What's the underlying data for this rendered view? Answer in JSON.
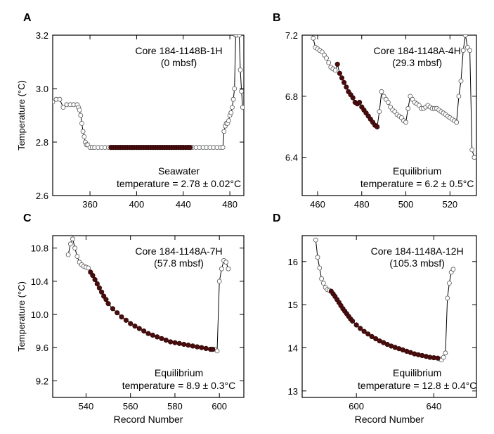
{
  "chart_data": [
    {
      "type": "scatter",
      "panel_label": "A",
      "title": "Core 184-1148B-1H",
      "subtitle": "(0 mbsf)",
      "annotation_line1": "Seawater",
      "annotation_line2": "temperature = 2.78 ± 0.02°C",
      "xlabel": "",
      "ylabel": "Temperature (°C)",
      "xlim": [
        328,
        492
      ],
      "ylim": [
        2.6,
        3.2
      ],
      "xticks": [
        360,
        400,
        440,
        480
      ],
      "xtick_labels": [
        "360",
        "400",
        "440",
        "480"
      ],
      "yticks": [
        2.6,
        2.8,
        3.0,
        3.2
      ],
      "ytick_labels": [
        "2.6",
        "2.8",
        "3.0",
        "3.2"
      ],
      "series": [
        {
          "style": "open",
          "x": [
            328,
            331,
            334,
            337,
            340,
            343,
            346,
            349,
            350,
            351,
            352,
            353,
            354,
            355,
            356,
            357,
            358,
            360,
            362,
            364,
            367,
            370,
            373,
            376,
            379,
            382,
            385,
            388,
            391,
            394,
            397,
            400,
            403,
            406,
            409,
            412,
            415,
            418,
            421,
            424,
            427,
            430,
            433,
            436,
            439,
            442,
            445,
            448,
            451,
            454,
            457,
            460,
            463,
            466,
            469,
            472,
            474,
            475,
            476,
            477,
            478,
            479,
            480,
            481,
            482,
            483,
            484,
            485,
            486,
            488,
            489,
            490,
            491
          ],
          "y": [
            2.95,
            2.96,
            2.96,
            2.93,
            2.94,
            2.94,
            2.94,
            2.94,
            2.93,
            2.92,
            2.9,
            2.87,
            2.84,
            2.82,
            2.8,
            2.79,
            2.79,
            2.78,
            2.78,
            2.78,
            2.78,
            2.78,
            2.78,
            2.78,
            2.78,
            2.78,
            2.78,
            2.78,
            2.78,
            2.78,
            2.78,
            2.78,
            2.78,
            2.78,
            2.78,
            2.78,
            2.78,
            2.78,
            2.78,
            2.78,
            2.78,
            2.78,
            2.78,
            2.78,
            2.78,
            2.78,
            2.78,
            2.78,
            2.78,
            2.78,
            2.78,
            2.78,
            2.78,
            2.78,
            2.78,
            2.78,
            2.78,
            2.84,
            2.86,
            2.87,
            2.87,
            2.88,
            2.9,
            2.91,
            2.93,
            2.96,
            3.0,
            3.2,
            3.2,
            3.2,
            3.07,
            2.99,
            2.93
          ]
        },
        {
          "style": "filled",
          "x": [
            378,
            380,
            382,
            384,
            386,
            388,
            390,
            392,
            394,
            396,
            398,
            400,
            402,
            404,
            406,
            408,
            410,
            412,
            414,
            416,
            418,
            420,
            422,
            424,
            426,
            428,
            430,
            432,
            434,
            436,
            438,
            440,
            442,
            444,
            446
          ],
          "y": [
            2.78,
            2.78,
            2.78,
            2.78,
            2.78,
            2.78,
            2.78,
            2.78,
            2.78,
            2.78,
            2.78,
            2.78,
            2.78,
            2.78,
            2.78,
            2.78,
            2.78,
            2.78,
            2.78,
            2.78,
            2.78,
            2.78,
            2.78,
            2.78,
            2.78,
            2.78,
            2.78,
            2.78,
            2.78,
            2.78,
            2.78,
            2.78,
            2.78,
            2.78,
            2.78
          ]
        }
      ]
    },
    {
      "type": "scatter",
      "panel_label": "B",
      "title": "Core 184-1148A-4H",
      "subtitle": "(29.3 mbsf)",
      "annotation_line1": "Equilibrium",
      "annotation_line2": "temperature = 6.2 ± 0.5°C",
      "xlabel": "",
      "ylabel": "",
      "xlim": [
        453,
        532
      ],
      "ylim": [
        6.15,
        7.2
      ],
      "xticks": [
        460,
        480,
        500,
        520
      ],
      "xtick_labels": [
        "460",
        "480",
        "500",
        "520"
      ],
      "yticks": [
        6.4,
        6.8,
        7.2
      ],
      "ytick_labels": [
        "6.4",
        "6.8",
        "7.2"
      ],
      "series": [
        {
          "style": "open",
          "x": [
            457,
            458,
            459,
            460,
            461,
            462,
            463,
            464,
            465,
            466,
            467,
            468,
            488,
            489,
            490,
            491,
            492,
            493,
            494,
            495,
            496,
            497,
            498,
            499,
            500,
            501,
            502,
            503,
            504,
            505,
            506,
            507,
            508,
            509,
            510,
            511,
            512,
            513,
            514,
            515,
            516,
            517,
            518,
            519,
            520,
            521,
            522,
            523,
            524,
            525,
            526,
            527,
            528,
            529,
            530,
            531
          ],
          "y": [
            7.25,
            7.18,
            7.12,
            7.11,
            7.1,
            7.09,
            7.07,
            7.05,
            7.02,
            6.99,
            6.98,
            6.97,
            6.7,
            6.83,
            6.8,
            6.78,
            6.76,
            6.73,
            6.71,
            6.7,
            6.68,
            6.67,
            6.66,
            6.64,
            6.63,
            6.72,
            6.8,
            6.78,
            6.76,
            6.75,
            6.74,
            6.72,
            6.72,
            6.73,
            6.74,
            6.73,
            6.72,
            6.72,
            6.72,
            6.71,
            6.7,
            6.69,
            6.68,
            6.67,
            6.66,
            6.65,
            6.64,
            6.63,
            6.8,
            6.9,
            7.1,
            7.2,
            7.12,
            7.1,
            6.45,
            6.4
          ]
        },
        {
          "style": "filled",
          "x": [
            469,
            470,
            471,
            472,
            473,
            474,
            475,
            476,
            477,
            478,
            479,
            480,
            481,
            482,
            483,
            484,
            485,
            486,
            487
          ],
          "y": [
            7.01,
            6.95,
            6.92,
            6.89,
            6.86,
            6.83,
            6.81,
            6.79,
            6.76,
            6.75,
            6.76,
            6.73,
            6.71,
            6.69,
            6.67,
            6.65,
            6.63,
            6.61,
            6.6
          ]
        }
      ]
    },
    {
      "type": "scatter",
      "panel_label": "C",
      "title": "Core 184-1148A-7H",
      "subtitle": "(57.8 mbsf)",
      "annotation_line1": "Equilibrium",
      "annotation_line2": "temperature = 8.9 ± 0.3°C",
      "xlabel": "Record Number",
      "ylabel": "Temperature (°C)",
      "xlim": [
        525,
        611
      ],
      "ylim": [
        9.0,
        10.95
      ],
      "xticks": [
        540,
        560,
        580,
        600
      ],
      "xtick_labels": [
        "540",
        "560",
        "580",
        "600"
      ],
      "yticks": [
        9.2,
        9.6,
        10.0,
        10.4,
        10.8
      ],
      "ytick_labels": [
        "9.2",
        "9.6",
        "10.0",
        "10.4",
        "10.8"
      ],
      "series": [
        {
          "style": "open",
          "x": [
            532,
            533,
            534,
            535,
            536,
            537,
            538,
            539,
            540,
            541,
            598,
            599,
            600,
            601,
            602,
            603,
            604
          ],
          "y": [
            10.72,
            10.85,
            10.91,
            10.8,
            10.7,
            10.63,
            10.6,
            10.58,
            10.57,
            10.56,
            9.58,
            9.56,
            10.4,
            10.55,
            10.65,
            10.63,
            10.55
          ]
        },
        {
          "style": "filled",
          "x": [
            542,
            543,
            544,
            545,
            546,
            547,
            548,
            549,
            550,
            552,
            554,
            556,
            558,
            560,
            562,
            564,
            566,
            568,
            570,
            572,
            574,
            576,
            578,
            580,
            582,
            584,
            586,
            588,
            590,
            592,
            594,
            596,
            597
          ],
          "y": [
            10.51,
            10.47,
            10.42,
            10.37,
            10.32,
            10.27,
            10.22,
            10.18,
            10.13,
            10.07,
            10.02,
            9.97,
            9.93,
            9.89,
            9.86,
            9.83,
            9.8,
            9.77,
            9.75,
            9.73,
            9.71,
            9.69,
            9.67,
            9.66,
            9.65,
            9.64,
            9.63,
            9.62,
            9.61,
            9.6,
            9.59,
            9.58,
            9.58
          ]
        }
      ]
    },
    {
      "type": "scatter",
      "panel_label": "D",
      "title": "Core 184-1148A-12H",
      "subtitle": "(105.3 mbsf)",
      "annotation_line1": "Equilibrium",
      "annotation_line2": "temperature = 12.8 ± 0.4°C",
      "xlabel": "Record Number",
      "ylabel": "",
      "xlim": [
        572,
        662
      ],
      "ylim": [
        12.85,
        16.6
      ],
      "xticks": [
        600,
        640
      ],
      "xtick_labels": [
        "600",
        "640"
      ],
      "yticks": [
        13,
        14,
        15,
        16
      ],
      "ytick_labels": [
        "13",
        "14",
        "15",
        "16"
      ],
      "series": [
        {
          "style": "open",
          "x": [
            579,
            580,
            581,
            582,
            583,
            584,
            585,
            586,
            643,
            644,
            645,
            646,
            647,
            648,
            649,
            650
          ],
          "y": [
            16.5,
            16.1,
            15.85,
            15.6,
            15.5,
            15.4,
            15.35,
            15.33,
            13.74,
            13.72,
            13.78,
            13.88,
            15.15,
            15.5,
            15.75,
            15.82
          ]
        },
        {
          "style": "filled",
          "x": [
            587,
            588,
            589,
            590,
            591,
            592,
            593,
            594,
            595,
            596,
            597,
            598,
            600,
            602,
            604,
            606,
            608,
            610,
            612,
            614,
            616,
            618,
            620,
            622,
            624,
            626,
            628,
            630,
            632,
            634,
            636,
            638,
            640,
            642
          ],
          "y": [
            15.31,
            15.25,
            15.19,
            15.12,
            15.05,
            14.98,
            14.91,
            14.85,
            14.79,
            14.73,
            14.67,
            14.62,
            14.53,
            14.45,
            14.38,
            14.32,
            14.26,
            14.21,
            14.16,
            14.12,
            14.08,
            14.04,
            14.01,
            13.98,
            13.95,
            13.92,
            13.89,
            13.86,
            13.84,
            13.82,
            13.8,
            13.78,
            13.77,
            13.76
          ]
        }
      ]
    }
  ]
}
